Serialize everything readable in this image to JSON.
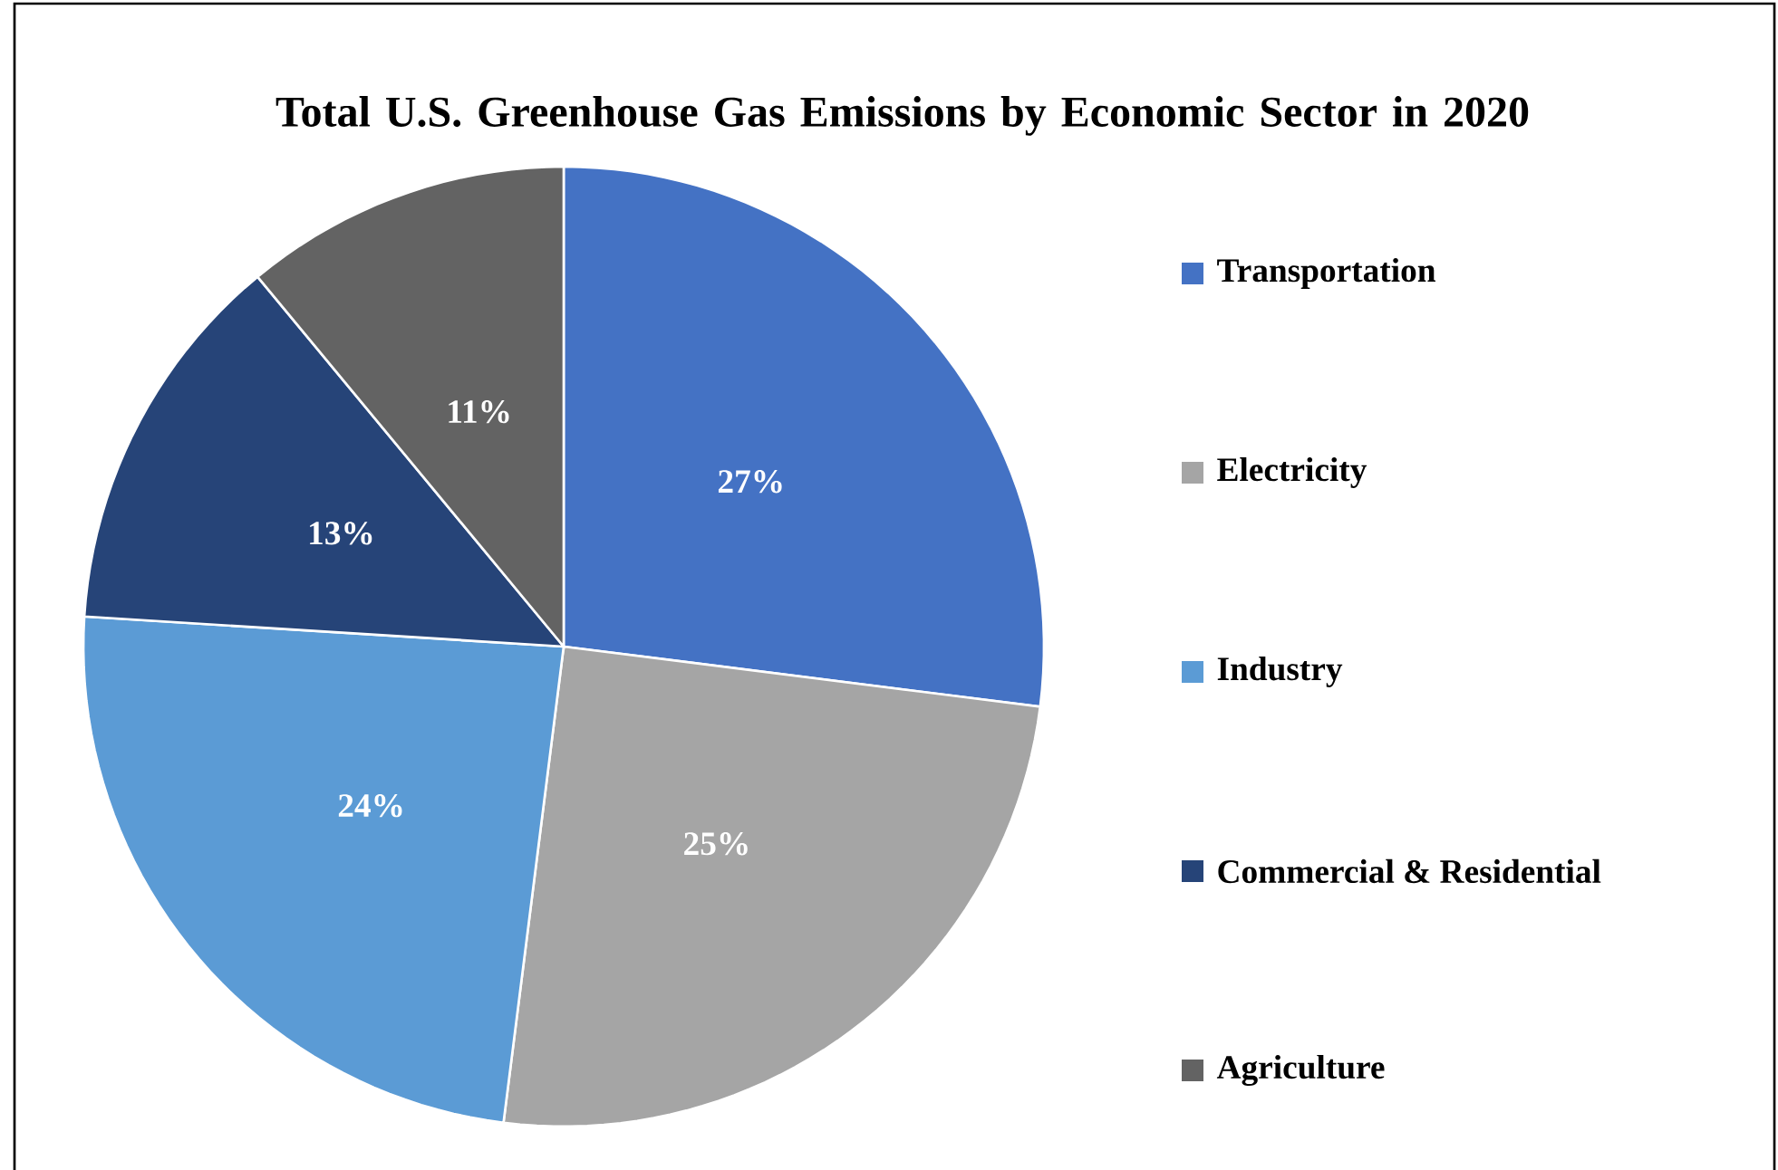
{
  "chart_data": {
    "type": "pie",
    "title": "Total U.S. Greenhouse Gas Emissions by Economic Sector in 2020",
    "categories": [
      "Transportation",
      "Electricity",
      "Industry",
      "Commercial & Residential",
      "Agriculture"
    ],
    "values": [
      27,
      25,
      24,
      13,
      11
    ],
    "colors": [
      "#4472c4",
      "#a5a5a5",
      "#5b9bd5",
      "#264478",
      "#636363"
    ],
    "value_labels": [
      "27%",
      "25%",
      "24%",
      "13%",
      "11%"
    ],
    "legend": "right"
  }
}
